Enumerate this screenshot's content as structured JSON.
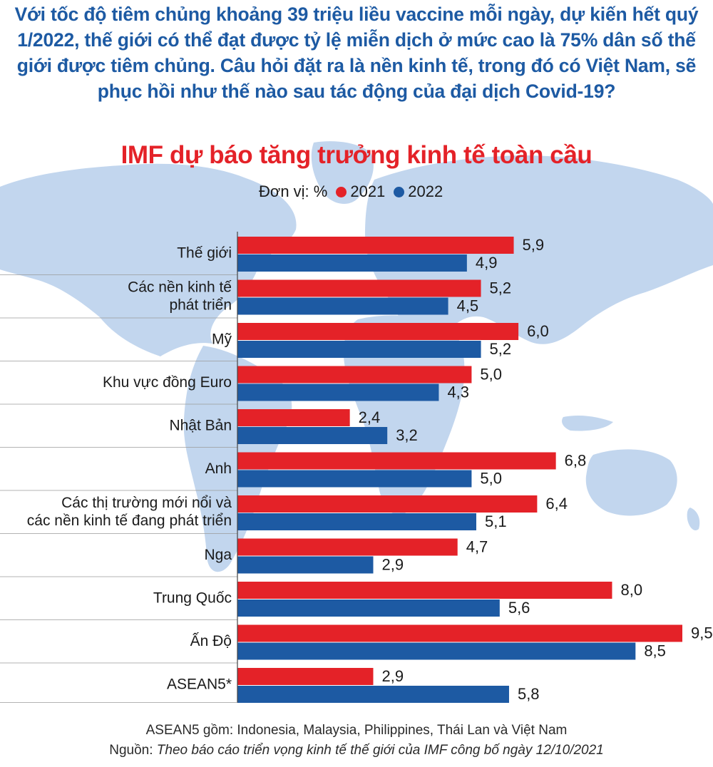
{
  "intro_text": "Với tốc độ tiêm chủng khoảng 39 triệu liều vaccine mỗi ngày, dự kiến hết quý 1/2022, thế giới có thể đạt được tỷ lệ miễn dịch ở mức cao là 75% dân số thế giới được tiêm chủng. Câu hỏi đặt ra là nền kinh tế, trong đó có Việt Nam, sẽ phục hồi như thế nào sau tác động của đại dịch Covid-19?",
  "legend": {
    "unit": "Đơn vị: %",
    "items": [
      {
        "label": "2021",
        "color": "#e42228"
      },
      {
        "label": "2022",
        "color": "#1d5aa3"
      }
    ]
  },
  "footnote": "ASEAN5 gồm: Indonesia, Malaysia, Philippines, Thái Lan và Việt Nam",
  "source": {
    "label": "Nguồn: ",
    "text": "Theo báo cáo triển vọng kinh tế thế giới của IMF công bố ngày 12/10/2021"
  },
  "colors": {
    "title_blue": "#1d5aa3",
    "title_red": "#e42228",
    "map": "#c2d6ee"
  },
  "chart_data": {
    "type": "bar",
    "orientation": "horizontal",
    "title": "IMF dự báo tăng trưởng kinh tế toàn cầu",
    "unit": "%",
    "categories": [
      [
        "Thế giới"
      ],
      [
        "Các nền kinh tế",
        "phát triển"
      ],
      [
        "Mỹ"
      ],
      [
        "Khu vực đồng Euro"
      ],
      [
        "Nhật Bản"
      ],
      [
        "Anh"
      ],
      [
        "Các thị trường mới nổi và",
        "các nền kinh tế đang phát triển"
      ],
      [
        "Nga"
      ],
      [
        "Trung Quốc"
      ],
      [
        "Ấn Độ"
      ],
      [
        "ASEAN5*"
      ]
    ],
    "series": [
      {
        "name": "2021",
        "color": "#e42228",
        "values": [
          5.9,
          5.2,
          6.0,
          5.0,
          2.4,
          6.8,
          6.4,
          4.7,
          8.0,
          9.5,
          2.9
        ],
        "labels": [
          "5,9",
          "5,2",
          "6,0",
          "5,0",
          "2,4",
          "6,8",
          "6,4",
          "4,7",
          "8,0",
          "9,5",
          "2,9"
        ]
      },
      {
        "name": "2022",
        "color": "#1d5aa3",
        "values": [
          4.9,
          4.5,
          5.2,
          4.3,
          3.2,
          5.0,
          5.1,
          2.9,
          5.6,
          8.5,
          5.8
        ],
        "labels": [
          "4,9",
          "4,5",
          "5,2",
          "4,3",
          "3,2",
          "5,0",
          "5,1",
          "2,9",
          "5,6",
          "8,5",
          "5,8"
        ]
      }
    ],
    "xlim": [
      0,
      10
    ],
    "grid": false,
    "legend_position": "top"
  }
}
